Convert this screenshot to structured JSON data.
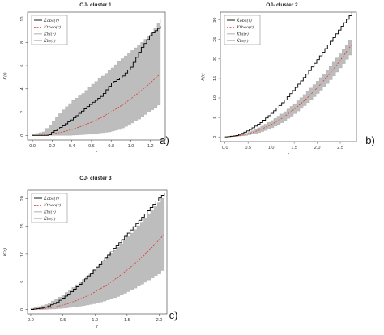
{
  "chart_data": [
    {
      "type": "line",
      "title": "OJ- cluster 1",
      "panel_label": "a)",
      "xlabel": "r",
      "ylabel": "K(r)",
      "xlim": [
        -0.05,
        1.35
      ],
      "ylim": [
        -0.4,
        10.6
      ],
      "xticks": [
        "0.0",
        "0.2",
        "0.4",
        "0.6",
        "0.8",
        "1.0",
        "1.2"
      ],
      "yticks": [
        "0",
        "2",
        "4",
        "6",
        "8",
        "10"
      ],
      "legend": [
        "K̂obs(r)",
        "Ktheo(r)",
        "K̂hi(r)",
        "K̂lo(r)"
      ],
      "legend_position": "top-left",
      "series": [
        {
          "name": "K̂obs(r)",
          "style": "solid",
          "color": "#000000",
          "x": [
            0.0,
            0.16,
            0.2,
            0.3,
            0.4,
            0.5,
            0.6,
            0.7,
            0.8,
            0.9,
            1.0,
            1.1,
            1.2,
            1.3
          ],
          "y": [
            0.0,
            0.0,
            0.3,
            0.8,
            1.4,
            2.1,
            2.8,
            3.4,
            4.5,
            5.0,
            5.9,
            7.5,
            8.7,
            9.4
          ]
        },
        {
          "name": "Ktheo(r)",
          "style": "dashed",
          "color": "#e0392b",
          "x": [
            0.0,
            0.1,
            0.2,
            0.3,
            0.4,
            0.5,
            0.6,
            0.7,
            0.8,
            0.9,
            1.0,
            1.1,
            1.2,
            1.3
          ],
          "y": [
            0.0,
            0.03,
            0.12,
            0.28,
            0.5,
            0.79,
            1.13,
            1.54,
            2.01,
            2.54,
            3.14,
            3.8,
            4.52,
            5.31
          ]
        },
        {
          "name": "K̂hi(r)",
          "style": "band-upper",
          "color": "#bdbdbd",
          "x": [
            0.0,
            0.1,
            0.2,
            0.3,
            0.4,
            0.5,
            0.6,
            0.7,
            0.8,
            0.9,
            1.0,
            1.1,
            1.2,
            1.3
          ],
          "y": [
            0.1,
            0.3,
            1.2,
            2.2,
            3.0,
            3.6,
            4.4,
            5.1,
            5.8,
            6.6,
            7.3,
            8.0,
            8.8,
            10.0
          ]
        },
        {
          "name": "K̂lo(r)",
          "style": "band-lower",
          "color": "#bdbdbd",
          "x": [
            0.0,
            0.1,
            0.2,
            0.3,
            0.4,
            0.5,
            0.6,
            0.7,
            0.8,
            0.9,
            1.0,
            1.1,
            1.2,
            1.3
          ],
          "y": [
            0.0,
            0.0,
            0.0,
            0.0,
            0.0,
            0.05,
            0.1,
            0.2,
            0.3,
            0.5,
            0.9,
            1.4,
            2.0,
            2.6
          ]
        }
      ]
    },
    {
      "type": "line",
      "title": "OJ- cluster 2",
      "panel_label": "b)",
      "xlabel": "r",
      "ylabel": "K(r)",
      "xlim": [
        -0.1,
        2.85
      ],
      "ylim": [
        -1.2,
        32
      ],
      "xticks": [
        "0.0",
        "0.5",
        "1.0",
        "1.5",
        "2.0",
        "2.5"
      ],
      "yticks": [
        "0",
        "5",
        "10",
        "15",
        "20",
        "25",
        "30"
      ],
      "legend": [
        "K̂obs(r)",
        "Ktheo(r)",
        "K̂hi(r)",
        "K̂lo(r)"
      ],
      "legend_position": "top-left",
      "series": [
        {
          "name": "K̂obs(r)",
          "style": "solid",
          "color": "#000000",
          "x": [
            0.0,
            0.25,
            0.5,
            0.75,
            1.0,
            1.25,
            1.5,
            1.75,
            2.0,
            2.25,
            2.5,
            2.75
          ],
          "y": [
            0.0,
            0.4,
            1.7,
            3.6,
            6.1,
            9.0,
            12.4,
            16.0,
            20.0,
            24.0,
            28.1,
            32.0
          ]
        },
        {
          "name": "Ktheo(r)",
          "style": "dashed",
          "color": "#e0392b",
          "x": [
            0.0,
            0.25,
            0.5,
            0.75,
            1.0,
            1.25,
            1.5,
            1.75,
            2.0,
            2.25,
            2.5,
            2.75
          ],
          "y": [
            0.0,
            0.2,
            0.79,
            1.77,
            3.14,
            4.91,
            7.07,
            9.62,
            12.57,
            15.9,
            19.63,
            23.76
          ]
        },
        {
          "name": "K̂hi(r)",
          "style": "band-upper",
          "color": "#bdbdbd",
          "x": [
            0.0,
            0.25,
            0.5,
            0.75,
            1.0,
            1.25,
            1.5,
            1.75,
            2.0,
            2.25,
            2.5,
            2.75
          ],
          "y": [
            0.0,
            0.3,
            1.2,
            2.6,
            4.3,
            6.3,
            8.7,
            11.5,
            14.6,
            18.0,
            21.8,
            25.8
          ]
        },
        {
          "name": "K̂lo(r)",
          "style": "band-lower",
          "color": "#bdbdbd",
          "x": [
            0.0,
            0.25,
            0.5,
            0.75,
            1.0,
            1.25,
            1.5,
            1.75,
            2.0,
            2.25,
            2.5,
            2.75
          ],
          "y": [
            0.0,
            0.1,
            0.4,
            1.0,
            2.0,
            3.5,
            5.5,
            7.9,
            10.6,
            13.6,
            17.1,
            21.0
          ]
        }
      ]
    },
    {
      "type": "line",
      "title": "OJ- cluster 3",
      "panel_label": "c)",
      "xlabel": "r",
      "ylabel": "K(r)",
      "xlim": [
        -0.05,
        2.12
      ],
      "ylim": [
        -0.8,
        21.5
      ],
      "xticks": [
        "0.0",
        "0.5",
        "1.0",
        "1.5",
        "2.0"
      ],
      "yticks": [
        "0",
        "5",
        "10",
        "15",
        "20"
      ],
      "legend": [
        "K̂obs(r)",
        "Ktheo(r)",
        "K̂hi(r)",
        "K̂lo(r)"
      ],
      "legend_position": "top-left",
      "series": [
        {
          "name": "K̂obs(r)",
          "style": "solid",
          "color": "#000000",
          "x": [
            0.0,
            0.2,
            0.4,
            0.6,
            0.8,
            1.0,
            1.2,
            1.4,
            1.6,
            1.8,
            2.0,
            2.08
          ],
          "y": [
            0.0,
            0.3,
            1.3,
            3.0,
            5.0,
            7.4,
            9.9,
            12.4,
            15.0,
            17.6,
            20.2,
            21.0
          ]
        },
        {
          "name": "Ktheo(r)",
          "style": "dashed",
          "color": "#e0392b",
          "x": [
            0.0,
            0.2,
            0.4,
            0.6,
            0.8,
            1.0,
            1.2,
            1.4,
            1.6,
            1.8,
            2.0,
            2.08
          ],
          "y": [
            0.0,
            0.13,
            0.5,
            1.13,
            2.01,
            3.14,
            4.52,
            6.16,
            8.04,
            10.18,
            12.57,
            13.59
          ]
        },
        {
          "name": "K̂hi(r)",
          "style": "band-upper",
          "color": "#bdbdbd",
          "x": [
            0.0,
            0.2,
            0.4,
            0.6,
            0.8,
            1.0,
            1.2,
            1.4,
            1.6,
            1.8,
            2.0,
            2.08
          ],
          "y": [
            0.2,
            0.8,
            2.0,
            3.6,
            5.4,
            7.5,
            9.8,
            12.0,
            14.4,
            16.9,
            19.6,
            20.8
          ]
        },
        {
          "name": "K̂lo(r)",
          "style": "band-lower",
          "color": "#bdbdbd",
          "x": [
            0.0,
            0.2,
            0.4,
            0.6,
            0.8,
            1.0,
            1.2,
            1.4,
            1.6,
            1.8,
            2.0,
            2.08
          ],
          "y": [
            0.0,
            0.0,
            0.1,
            0.3,
            0.6,
            1.0,
            1.6,
            2.4,
            3.5,
            4.8,
            6.3,
            7.0
          ]
        }
      ]
    }
  ]
}
